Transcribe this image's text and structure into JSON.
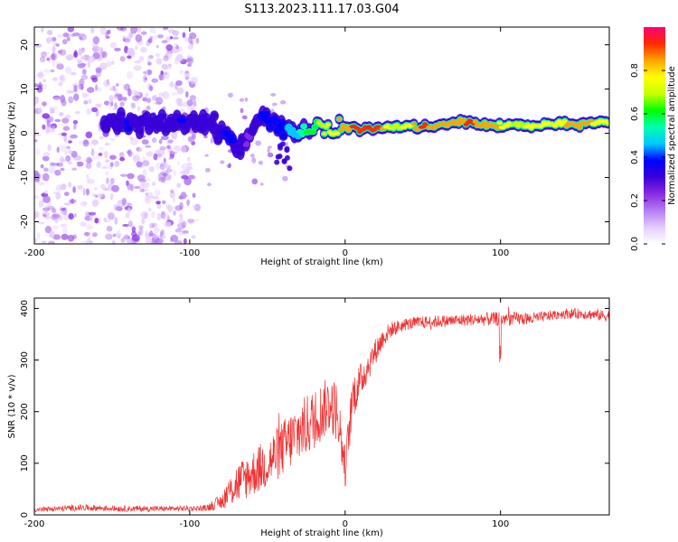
{
  "title": "S113.2023.111.17.03.G04",
  "chart_data": [
    {
      "type": "heatmap",
      "name": "spectrogram",
      "xlabel": "Height of straight line (km)",
      "ylabel": "Frequency (Hz)",
      "xlim": [
        -200,
        170
      ],
      "ylim": [
        -25,
        24
      ],
      "xticks": [
        -200,
        -100,
        0,
        100
      ],
      "yticks": [
        -20,
        -10,
        0,
        10,
        20
      ],
      "colorbar": {
        "label": "Normalized spectral amplitude",
        "range": [
          0,
          1
        ],
        "ticks": [
          0.0,
          0.2,
          0.4,
          0.6,
          0.8
        ],
        "tick_labels": [
          "0.0",
          "0.2",
          "0.4",
          "0.6",
          "0.8"
        ],
        "colors": [
          "#ffffff",
          "#e6ccff",
          "#b47cf2",
          "#8a2be2",
          "#3a00d8",
          "#0000ff",
          "#00c8ff",
          "#00ffb0",
          "#00ff00",
          "#c8ff00",
          "#ffff00",
          "#ffa500",
          "#ff2a00",
          "#ff0078"
        ]
      },
      "ridge": {
        "description": "Main spectral line frequency (Hz) vs height (km)",
        "x": [
          -155,
          -140,
          -120,
          -105,
          -95,
          -85,
          -78,
          -72,
          -68,
          -63,
          -58,
          -55,
          -50,
          -45,
          -40,
          -35,
          -30,
          -25,
          -20,
          -15,
          -10,
          -5,
          0,
          10,
          20,
          30,
          40,
          50,
          60,
          70,
          80,
          90,
          100,
          110,
          120,
          130,
          140,
          150,
          160,
          170
        ],
        "y": [
          3,
          2,
          2,
          2.5,
          3,
          2,
          0,
          -2,
          -4,
          -1,
          1,
          3,
          4,
          2,
          1.5,
          0.5,
          0,
          0.5,
          1,
          1.5,
          0,
          0.5,
          1.5,
          1,
          1,
          1.5,
          1.5,
          1.5,
          1.5,
          2.5,
          2.5,
          2,
          1.5,
          2,
          1.5,
          2,
          2,
          2,
          2.5,
          2.5
        ],
        "amplitude": [
          0.3,
          0.35,
          0.3,
          0.35,
          0.3,
          0.3,
          0.35,
          0.35,
          0.3,
          0.25,
          0.3,
          0.35,
          0.35,
          0.35,
          0.4,
          0.45,
          0.5,
          0.6,
          0.6,
          0.7,
          0.75,
          0.8,
          0.85,
          0.95,
          0.95,
          0.7,
          0.75,
          0.9,
          0.85,
          0.85,
          0.9,
          0.85,
          0.8,
          0.7,
          0.75,
          0.8,
          0.8,
          0.85,
          0.8,
          0.75
        ]
      },
      "noise_region": {
        "description": "Scattered low-amplitude noise blobs across all frequencies",
        "x_range": [
          -200,
          -95
        ],
        "amplitude": 0.12
      }
    },
    {
      "type": "line",
      "name": "snr",
      "xlabel": "Height of straight line (km)",
      "ylabel": "SNR (10 * v/v)",
      "xlim": [
        -200,
        170
      ],
      "ylim": [
        0,
        420
      ],
      "xticks": [
        -200,
        -100,
        0,
        100
      ],
      "yticks": [
        0,
        100,
        200,
        300,
        400
      ],
      "color": "#ee3333",
      "envelope": {
        "x": [
          -200,
          -170,
          -140,
          -110,
          -90,
          -80,
          -70,
          -60,
          -50,
          -40,
          -30,
          -20,
          -10,
          -5,
          0,
          5,
          10,
          15,
          20,
          25,
          30,
          40,
          50,
          60,
          80,
          100,
          120,
          130,
          140,
          150,
          160,
          170
        ],
        "mean": [
          10,
          14,
          12,
          12,
          13,
          25,
          60,
          80,
          100,
          130,
          160,
          185,
          215,
          200,
          90,
          230,
          260,
          290,
          320,
          345,
          360,
          370,
          373,
          375,
          378,
          380,
          380,
          385,
          390,
          390,
          388,
          385
        ],
        "spread": [
          5,
          6,
          6,
          5,
          6,
          15,
          40,
          45,
          50,
          55,
          60,
          60,
          55,
          60,
          40,
          45,
          35,
          30,
          25,
          20,
          15,
          12,
          12,
          12,
          12,
          14,
          12,
          10,
          10,
          10,
          10,
          12
        ]
      }
    }
  ]
}
